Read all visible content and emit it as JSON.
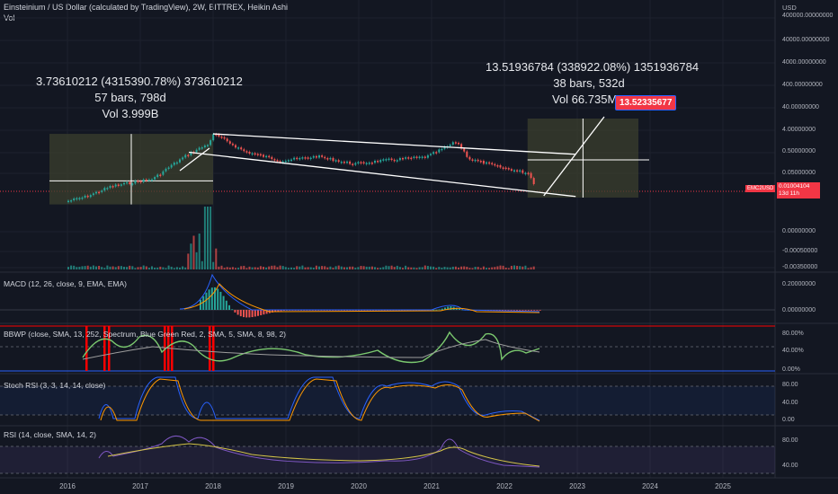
{
  "header": {
    "title": "Einsteinium / US Dollar (calculated by TradingView), 2W, BITTREX, Heikin Ashi",
    "vol_label": "Vol",
    "currency": "USD"
  },
  "price_tag": {
    "symbol": "EMC2USD",
    "price": "0.01004104",
    "countdown": "13d 11h"
  },
  "target_label": "13.52335677",
  "annotations": {
    "left": {
      "line1": "3.73610212 (4315390.78%) 373610212",
      "line2": "57 bars, 798d",
      "line3": "Vol 3.999B"
    },
    "right": {
      "line1": "13.51936784 (338922.08%) 1351936784",
      "line2": "38 bars, 532d",
      "line3": "Vol 66.735M"
    }
  },
  "indicators": {
    "macd": {
      "title": "MACD (12, 26, close, 9, EMA, EMA)",
      "ticks": [
        "0.20000000",
        "0.00000000"
      ]
    },
    "bbwp": {
      "title": "BBWP (close, SMA, 13, 252, Spectrum, Blue Green Red, 2, SMA, 5, SMA, 8, 98, 2)",
      "ticks": [
        "80.00%",
        "40.00%",
        "0.00%"
      ]
    },
    "stoch": {
      "title": "Stoch RSI (3, 3, 14, 14, close)",
      "ticks": [
        "80.00",
        "40.00",
        "0.00"
      ]
    },
    "rsi": {
      "title": "RSI (14, close, SMA, 14, 2)",
      "ticks": [
        "80.00",
        "40.00"
      ]
    }
  },
  "colors": {
    "up": "#26a69a",
    "down": "#ef5350",
    "background": "#131722",
    "box": "#3b3f2d",
    "bbwp_signal": "#ff0000",
    "target": "#f23645"
  },
  "chart_data": {
    "type": "candlestick",
    "title": "Einsteinium / US Dollar (calculated by TradingView), 2W, BITTREX, Heikin Ashi",
    "y_scale": "log",
    "y_ticks": [
      "400000.00000000",
      "40000.00000000",
      "4000.00000000",
      "400.00000000",
      "40.00000000",
      "4.00000000",
      "0.50000000",
      "0.05000000",
      "0.00000000",
      "-0.00050000",
      "-0.00350000"
    ],
    "x_ticks": [
      "2016",
      "2017",
      "2018",
      "2019",
      "2020",
      "2021",
      "2022",
      "2023",
      "2024",
      "2025"
    ],
    "current_price": 0.01004104,
    "target_price": 13.52335677,
    "close_path": [
      {
        "x": "2016-01",
        "y": 0.0025
      },
      {
        "x": "2016-04",
        "y": 0.004
      },
      {
        "x": "2016-08",
        "y": 0.012
      },
      {
        "x": "2016-12",
        "y": 0.02
      },
      {
        "x": "2017-03",
        "y": 0.028
      },
      {
        "x": "2017-06",
        "y": 0.12
      },
      {
        "x": "2017-09",
        "y": 0.45
      },
      {
        "x": "2017-12",
        "y": 1.2
      },
      {
        "x": "2018-01",
        "y": 3.7
      },
      {
        "x": "2018-06",
        "y": 0.55
      },
      {
        "x": "2018-12",
        "y": 0.2
      },
      {
        "x": "2019-06",
        "y": 0.32
      },
      {
        "x": "2019-12",
        "y": 0.14
      },
      {
        "x": "2020-06",
        "y": 0.22
      },
      {
        "x": "2020-12",
        "y": 0.3
      },
      {
        "x": "2021-05",
        "y": 1.6
      },
      {
        "x": "2021-07",
        "y": 0.25
      },
      {
        "x": "2021-12",
        "y": 0.1
      },
      {
        "x": "2022-05",
        "y": 0.05
      },
      {
        "x": "2022-06",
        "y": 0.01
      }
    ],
    "channel": [
      {
        "name": "upper",
        "from": {
          "x": "2018-01",
          "y": 3.7
        },
        "to": {
          "x": "2022-12",
          "y": 0.4
        }
      },
      {
        "name": "lower",
        "from": {
          "x": "2017-09",
          "y": 0.5
        },
        "to": {
          "x": "2022-12",
          "y": 0.004
        }
      }
    ],
    "projection": {
      "from": {
        "x": "2022-06",
        "y": 0.01
      },
      "to": {
        "x": "2023-06",
        "y": 13.52
      }
    }
  }
}
